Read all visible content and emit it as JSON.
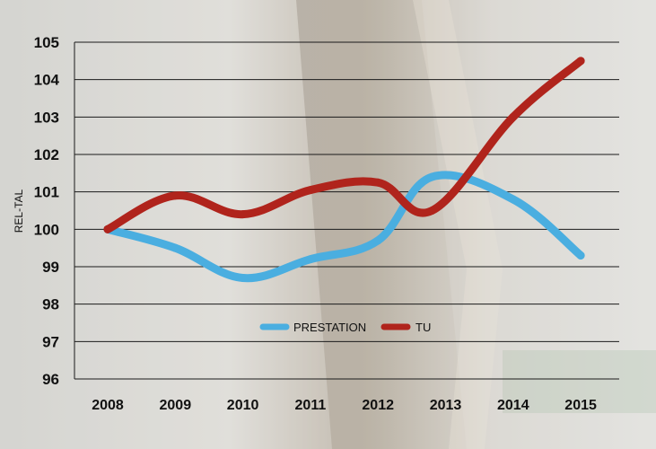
{
  "chart_data": {
    "type": "line",
    "title": "",
    "xlabel": "",
    "ylabel": "REL-TAL",
    "categories": [
      "2008",
      "2009",
      "2010",
      "2011",
      "2012",
      "2013",
      "2014",
      "2015"
    ],
    "ylim": [
      96,
      105
    ],
    "yticks": [
      96,
      97,
      98,
      99,
      100,
      101,
      102,
      103,
      104,
      105
    ],
    "grid": true,
    "legend_position": "bottom-center",
    "series": [
      {
        "name": "PRESTATION",
        "color": "#4aaee0",
        "points": [
          {
            "x": "2008",
            "y": 100.0
          },
          {
            "x": "2009",
            "y": 99.5
          },
          {
            "x": "2010",
            "y": 98.7
          },
          {
            "x": "2011",
            "y": 99.2
          },
          {
            "x": "2012",
            "y": 99.7
          },
          {
            "x": "2012.8",
            "y": 101.4
          },
          {
            "x": "2014",
            "y": 100.8
          },
          {
            "x": "2015",
            "y": 99.3
          }
        ]
      },
      {
        "name": "TU",
        "color": "#b0241c",
        "points": [
          {
            "x": "2008",
            "y": 100.0
          },
          {
            "x": "2009",
            "y": 100.9
          },
          {
            "x": "2010",
            "y": 100.4
          },
          {
            "x": "2011",
            "y": 101.05
          },
          {
            "x": "2012",
            "y": 101.25
          },
          {
            "x": "2012.8",
            "y": 100.5
          },
          {
            "x": "2014",
            "y": 103.0
          },
          {
            "x": "2015",
            "y": 104.5
          }
        ]
      }
    ]
  }
}
